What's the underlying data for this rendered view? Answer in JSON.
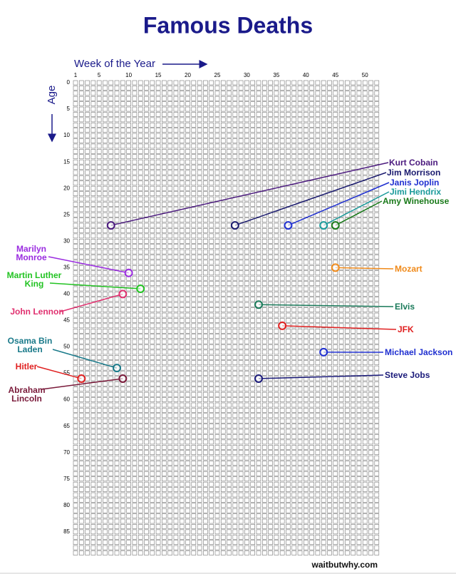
{
  "chart_data": {
    "type": "scatter",
    "title": "Famous Deaths",
    "x_label": "Week of the Year",
    "y_label": "Age",
    "source": "waitbutwhy.com",
    "xlim": [
      1,
      52
    ],
    "ylim": [
      0,
      89
    ],
    "grid": true,
    "xticks": [
      1,
      5,
      10,
      15,
      20,
      25,
      30,
      35,
      40,
      45,
      50
    ],
    "yticks": [
      0,
      5,
      10,
      15,
      20,
      25,
      30,
      35,
      40,
      45,
      50,
      55,
      60,
      65,
      70,
      75,
      80,
      85
    ],
    "series": [
      {
        "name": "Kurt Cobain",
        "color": "#4b1a7e",
        "x": [
          7
        ],
        "values": [
          27
        ]
      },
      {
        "name": "Jim Morrison",
        "color": "#1a1a6e",
        "x": [
          28
        ],
        "values": [
          27
        ]
      },
      {
        "name": "Janis Joplin",
        "color": "#1f2fd0",
        "x": [
          37
        ],
        "values": [
          27
        ]
      },
      {
        "name": "Jimi Hendrix",
        "color": "#1a9a9a",
        "x": [
          43
        ],
        "values": [
          27
        ]
      },
      {
        "name": "Amy Winehouse",
        "color": "#1a7a1a",
        "x": [
          45
        ],
        "values": [
          27
        ]
      },
      {
        "name": "Marilyn Monroe",
        "color": "#9a2be0",
        "x": [
          10
        ],
        "values": [
          36
        ]
      },
      {
        "name": "Mozart",
        "color": "#f08a1a",
        "x": [
          45
        ],
        "values": [
          35
        ]
      },
      {
        "name": "Martin Luther King",
        "color": "#22c322",
        "x": [
          12
        ],
        "values": [
          39
        ]
      },
      {
        "name": "John Lennon",
        "color": "#e0306f",
        "x": [
          9
        ],
        "values": [
          40
        ]
      },
      {
        "name": "Elvis",
        "color": "#1a7a5a",
        "x": [
          32
        ],
        "values": [
          42
        ]
      },
      {
        "name": "JFK",
        "color": "#e02020",
        "x": [
          36
        ],
        "values": [
          46
        ]
      },
      {
        "name": "Michael Jackson",
        "color": "#1f2fd0",
        "x": [
          43
        ],
        "values": [
          51
        ]
      },
      {
        "name": "Osama Bin Laden",
        "color": "#1a7a8a",
        "x": [
          8
        ],
        "values": [
          54
        ]
      },
      {
        "name": "Hitler",
        "color": "#e02020",
        "x": [
          2
        ],
        "values": [
          56
        ]
      },
      {
        "name": "Abraham Lincoln",
        "color": "#7a1a3a",
        "x": [
          9
        ],
        "values": [
          56
        ]
      },
      {
        "name": "Steve Jobs",
        "color": "#1a1a7a",
        "x": [
          32
        ],
        "values": [
          56
        ]
      }
    ]
  }
}
